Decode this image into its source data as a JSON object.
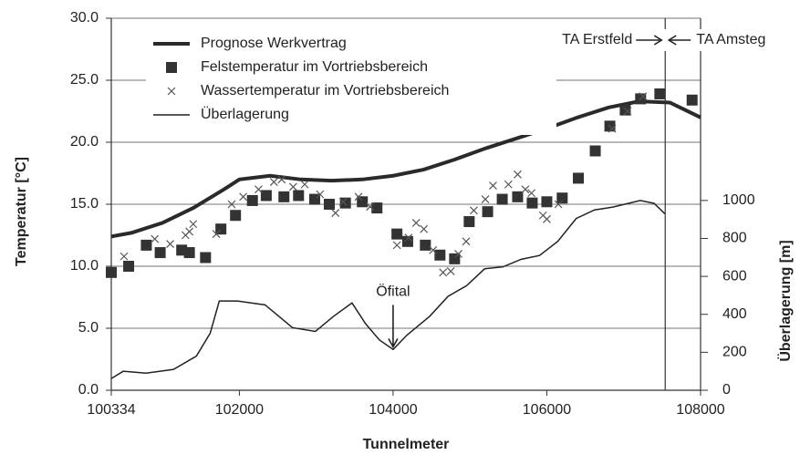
{
  "chart_data": {
    "type": "line",
    "xlabel": "Tunnelmeter",
    "ylabel": "Temperatur [°C]",
    "y2label": "Überlagerung [m]",
    "xlim": [
      100334,
      108000
    ],
    "xticks": [
      100334,
      102000,
      104000,
      106000,
      108000
    ],
    "ylim": [
      0,
      30
    ],
    "yticks": [
      {
        "value": 0,
        "label": "0.0"
      },
      {
        "value": 5,
        "label": "5.0"
      },
      {
        "value": 10,
        "label": "10.0"
      },
      {
        "value": 15,
        "label": "15.0"
      },
      {
        "value": 20,
        "label": "20.0"
      },
      {
        "value": 25,
        "label": "25.0"
      },
      {
        "value": 30,
        "label": "30.0"
      }
    ],
    "y2lim": [
      0,
      1960
    ],
    "y2ticks": [
      0,
      200,
      400,
      600,
      800,
      1000
    ],
    "grid": true,
    "series": [
      {
        "name": "Prognose Werkvertrag",
        "style": "thick-line",
        "color": "#2a2a2a",
        "x": [
          100334,
          100600,
          101000,
          101400,
          101800,
          102000,
          102400,
          102800,
          103200,
          103600,
          104000,
          104400,
          104800,
          105200,
          105600,
          106000,
          106400,
          106800,
          107200,
          107600,
          108000
        ],
        "values": [
          12.4,
          12.7,
          13.5,
          14.7,
          16.2,
          17.0,
          17.3,
          17.0,
          16.9,
          17.0,
          17.3,
          17.8,
          18.6,
          19.5,
          20.3,
          21.1,
          22.0,
          22.8,
          23.3,
          23.2,
          22.0
        ]
      },
      {
        "name": "Felstemperatur im Vortriebsbereich",
        "style": "square",
        "color": "#333333",
        "x": [
          100334,
          100560,
          100790,
          100970,
          101250,
          101350,
          101560,
          101760,
          101950,
          102170,
          102350,
          102580,
          102770,
          102980,
          103170,
          103380,
          103600,
          103790,
          104050,
          104190,
          104420,
          104610,
          104800,
          104990,
          105230,
          105420,
          105620,
          105810,
          106000,
          106200,
          106410,
          106630,
          106820,
          107020,
          107220,
          107470,
          107890
        ],
        "values": [
          9.5,
          10.0,
          11.7,
          11.1,
          11.3,
          11.1,
          10.7,
          13.0,
          14.1,
          15.3,
          15.7,
          15.6,
          15.7,
          15.4,
          15.0,
          15.1,
          15.2,
          14.7,
          12.6,
          12.0,
          11.7,
          10.9,
          10.6,
          13.6,
          14.4,
          15.4,
          15.6,
          15.1,
          15.2,
          15.5,
          17.1,
          19.3,
          21.3,
          22.6,
          23.5,
          23.9,
          23.4
        ]
      },
      {
        "name": "Wassertemperatur im Vortriebsbereich",
        "style": "cross",
        "color": "#555555",
        "x": [
          100500,
          100900,
          101100,
          101300,
          101350,
          101400,
          101700,
          101900,
          102050,
          102250,
          102450,
          102550,
          102700,
          102850,
          103050,
          103250,
          103350,
          103550,
          103700,
          104050,
          104200,
          104300,
          104400,
          104520,
          104650,
          104750,
          104850,
          104950,
          105050,
          105200,
          105300,
          105500,
          105620,
          105720,
          105800,
          105950,
          106000,
          106150,
          106850,
          107050,
          107250
        ],
        "values": [
          10.8,
          12.2,
          11.8,
          12.5,
          12.8,
          13.4,
          12.6,
          15.0,
          15.6,
          16.2,
          16.8,
          17.0,
          16.4,
          16.6,
          15.8,
          14.3,
          15.2,
          15.6,
          14.8,
          11.7,
          12.3,
          13.5,
          13.0,
          11.3,
          9.5,
          9.6,
          11.0,
          12.0,
          14.5,
          15.4,
          16.5,
          16.6,
          17.4,
          16.2,
          15.9,
          14.1,
          13.8,
          15.0,
          21.1,
          22.5,
          23.7
        ]
      },
      {
        "name": "Überlagerung",
        "style": "thin-line",
        "color": "#222222",
        "axis": "y2",
        "x": [
          100334,
          100489,
          100786,
          101143,
          101441,
          101620,
          101739,
          101977,
          102334,
          102691,
          102989,
          103227,
          103465,
          103643,
          103822,
          104001,
          104179,
          104477,
          104715,
          104953,
          105191,
          105429,
          105667,
          105905,
          106144,
          106382,
          106620,
          106858,
          107215,
          107394,
          107536
        ],
        "values": [
          62,
          100,
          90,
          110,
          180,
          300,
          470,
          470,
          450,
          330,
          310,
          390,
          460,
          350,
          265,
          215,
          290,
          390,
          495,
          550,
          640,
          650,
          690,
          710,
          785,
          905,
          950,
          965,
          1000,
          985,
          930
        ]
      }
    ],
    "vline": {
      "x": 107540,
      "left_label": "TA Erstfeld",
      "right_label": "TA Amsteg"
    },
    "annotation": {
      "text": "Öfital",
      "x": 104000,
      "y": 3.5
    }
  }
}
